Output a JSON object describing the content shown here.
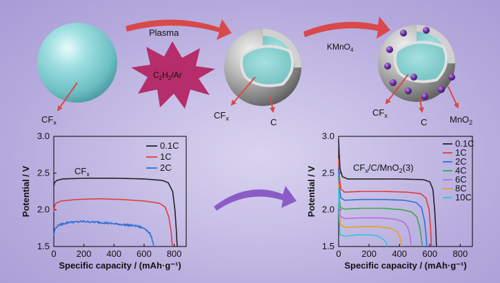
{
  "schematic": {
    "step1_label": "Plasma",
    "step1_gas_main": "C",
    "step1_gas_sub1": "2",
    "step1_gas_mid": "H",
    "step1_gas_sub2": "2",
    "step1_gas_tail": "/Ar",
    "step2_main": "KMnO",
    "step2_sub": "4",
    "core_main": "CF",
    "core_sub": "x",
    "shell_label": "C",
    "particle_main": "MnO",
    "particle_sub": "2",
    "colors": {
      "core": "#86d3d6",
      "shell": "#9a9a9a",
      "particles": "#6a2fa0",
      "arrow": "#d9484a",
      "star": "#b52d6a"
    }
  },
  "chart_data": [
    {
      "type": "line",
      "title_main": "CF",
      "title_sub": "x",
      "xlabel": "Specific capacity / (mAh·g⁻¹)",
      "ylabel": "Potential / V",
      "xlim": [
        0,
        880
      ],
      "ylim": [
        1.5,
        3.0
      ],
      "xticks": [
        "0",
        "200",
        "400",
        "600",
        "800"
      ],
      "yticks": [
        "1.5",
        "2.0",
        "2.5",
        "3.0"
      ],
      "legend_position": "top-right",
      "series": [
        {
          "name": "0.1C",
          "color": "#222222",
          "noise": 0.0,
          "points": [
            [
              0,
              2.33
            ],
            [
              5,
              2.37
            ],
            [
              20,
              2.4
            ],
            [
              60,
              2.42
            ],
            [
              200,
              2.43
            ],
            [
              400,
              2.43
            ],
            [
              600,
              2.42
            ],
            [
              720,
              2.4
            ],
            [
              760,
              2.37
            ],
            [
              790,
              2.25
            ],
            [
              805,
              2.0
            ],
            [
              815,
              1.7
            ],
            [
              820,
              1.5
            ]
          ]
        },
        {
          "name": "1C",
          "color": "#e23a3a",
          "noise": 0.0,
          "points": [
            [
              0,
              1.97
            ],
            [
              5,
              2.05
            ],
            [
              15,
              2.09
            ],
            [
              50,
              2.12
            ],
            [
              150,
              2.14
            ],
            [
              300,
              2.15
            ],
            [
              450,
              2.14
            ],
            [
              600,
              2.12
            ],
            [
              700,
              2.09
            ],
            [
              740,
              2.04
            ],
            [
              765,
              1.9
            ],
            [
              780,
              1.7
            ],
            [
              788,
              1.5
            ]
          ]
        },
        {
          "name": "2C",
          "color": "#2e6fd8",
          "noise": 0.012,
          "points": [
            [
              0,
              1.65
            ],
            [
              8,
              1.74
            ],
            [
              30,
              1.79
            ],
            [
              100,
              1.83
            ],
            [
              200,
              1.84
            ],
            [
              300,
              1.83
            ],
            [
              450,
              1.8
            ],
            [
              550,
              1.78
            ],
            [
              610,
              1.74
            ],
            [
              640,
              1.67
            ],
            [
              658,
              1.57
            ],
            [
              665,
              1.5
            ]
          ]
        }
      ]
    },
    {
      "type": "line",
      "title_main": "CF",
      "title_sub": "x",
      "title_tail": "/C/MnO",
      "title_sub2": "2",
      "title_suffix": "(3)",
      "xlabel": "Specific capacity / (mAh·g⁻¹)",
      "ylabel": "Potential / V",
      "xlim": [
        0,
        880
      ],
      "ylim": [
        1.5,
        3.0
      ],
      "xticks": [
        "0",
        "200",
        "400",
        "600",
        "800"
      ],
      "yticks": [
        "1.5",
        "2.0",
        "2.5",
        "3.0"
      ],
      "legend_position": "top-right",
      "series": [
        {
          "name": "0.1C",
          "color": "#222222",
          "noise": 0.0,
          "points": [
            [
              0,
              2.95
            ],
            [
              4,
              2.75
            ],
            [
              10,
              2.55
            ],
            [
              25,
              2.45
            ],
            [
              60,
              2.42
            ],
            [
              200,
              2.42
            ],
            [
              400,
              2.42
            ],
            [
              560,
              2.41
            ],
            [
              600,
              2.38
            ],
            [
              620,
              2.28
            ],
            [
              632,
              2.0
            ],
            [
              640,
              1.7
            ],
            [
              643,
              1.5
            ]
          ]
        },
        {
          "name": "1C",
          "color": "#e23a3a",
          "noise": 0.0,
          "points": [
            [
              0,
              2.7
            ],
            [
              5,
              2.45
            ],
            [
              15,
              2.28
            ],
            [
              40,
              2.24
            ],
            [
              150,
              2.25
            ],
            [
              300,
              2.25
            ],
            [
              450,
              2.24
            ],
            [
              540,
              2.22
            ],
            [
              575,
              2.16
            ],
            [
              595,
              2.0
            ],
            [
              605,
              1.75
            ],
            [
              610,
              1.5
            ]
          ]
        },
        {
          "name": "2C",
          "color": "#2e6fd8",
          "noise": 0.0,
          "points": [
            [
              0,
              2.55
            ],
            [
              5,
              2.3
            ],
            [
              15,
              2.16
            ],
            [
              40,
              2.13
            ],
            [
              150,
              2.14
            ],
            [
              300,
              2.14
            ],
            [
              430,
              2.13
            ],
            [
              510,
              2.1
            ],
            [
              545,
              2.03
            ],
            [
              565,
              1.85
            ],
            [
              575,
              1.65
            ],
            [
              580,
              1.5
            ]
          ]
        },
        {
          "name": "4C",
          "color": "#3aa84a",
          "noise": 0.0,
          "points": [
            [
              0,
              2.45
            ],
            [
              5,
              2.15
            ],
            [
              12,
              2.03
            ],
            [
              40,
              2.01
            ],
            [
              150,
              2.02
            ],
            [
              300,
              2.02
            ],
            [
              420,
              2.0
            ],
            [
              480,
              1.97
            ],
            [
              515,
              1.9
            ],
            [
              535,
              1.75
            ],
            [
              545,
              1.6
            ],
            [
              550,
              1.5
            ]
          ]
        },
        {
          "name": "6C",
          "color": "#b070dc",
          "noise": 0.0,
          "points": [
            [
              0,
              2.4
            ],
            [
              5,
              2.05
            ],
            [
              12,
              1.91
            ],
            [
              40,
              1.88
            ],
            [
              150,
              1.89
            ],
            [
              280,
              1.89
            ],
            [
              380,
              1.87
            ],
            [
              430,
              1.83
            ],
            [
              455,
              1.76
            ],
            [
              470,
              1.65
            ],
            [
              477,
              1.5
            ]
          ]
        },
        {
          "name": "8C",
          "color": "#e6a020",
          "noise": 0.0,
          "points": [
            [
              0,
              2.35
            ],
            [
              5,
              1.95
            ],
            [
              12,
              1.8
            ],
            [
              40,
              1.76
            ],
            [
              150,
              1.77
            ],
            [
              260,
              1.77
            ],
            [
              340,
              1.75
            ],
            [
              385,
              1.7
            ],
            [
              405,
              1.62
            ],
            [
              415,
              1.5
            ]
          ]
        },
        {
          "name": "10C",
          "color": "#33c4d8",
          "noise": 0.0,
          "points": [
            [
              0,
              2.3
            ],
            [
              4,
              1.85
            ],
            [
              10,
              1.66
            ],
            [
              40,
              1.64
            ],
            [
              120,
              1.66
            ],
            [
              200,
              1.66
            ],
            [
              260,
              1.64
            ],
            [
              300,
              1.59
            ],
            [
              315,
              1.54
            ],
            [
              320,
              1.5
            ]
          ]
        }
      ]
    }
  ]
}
